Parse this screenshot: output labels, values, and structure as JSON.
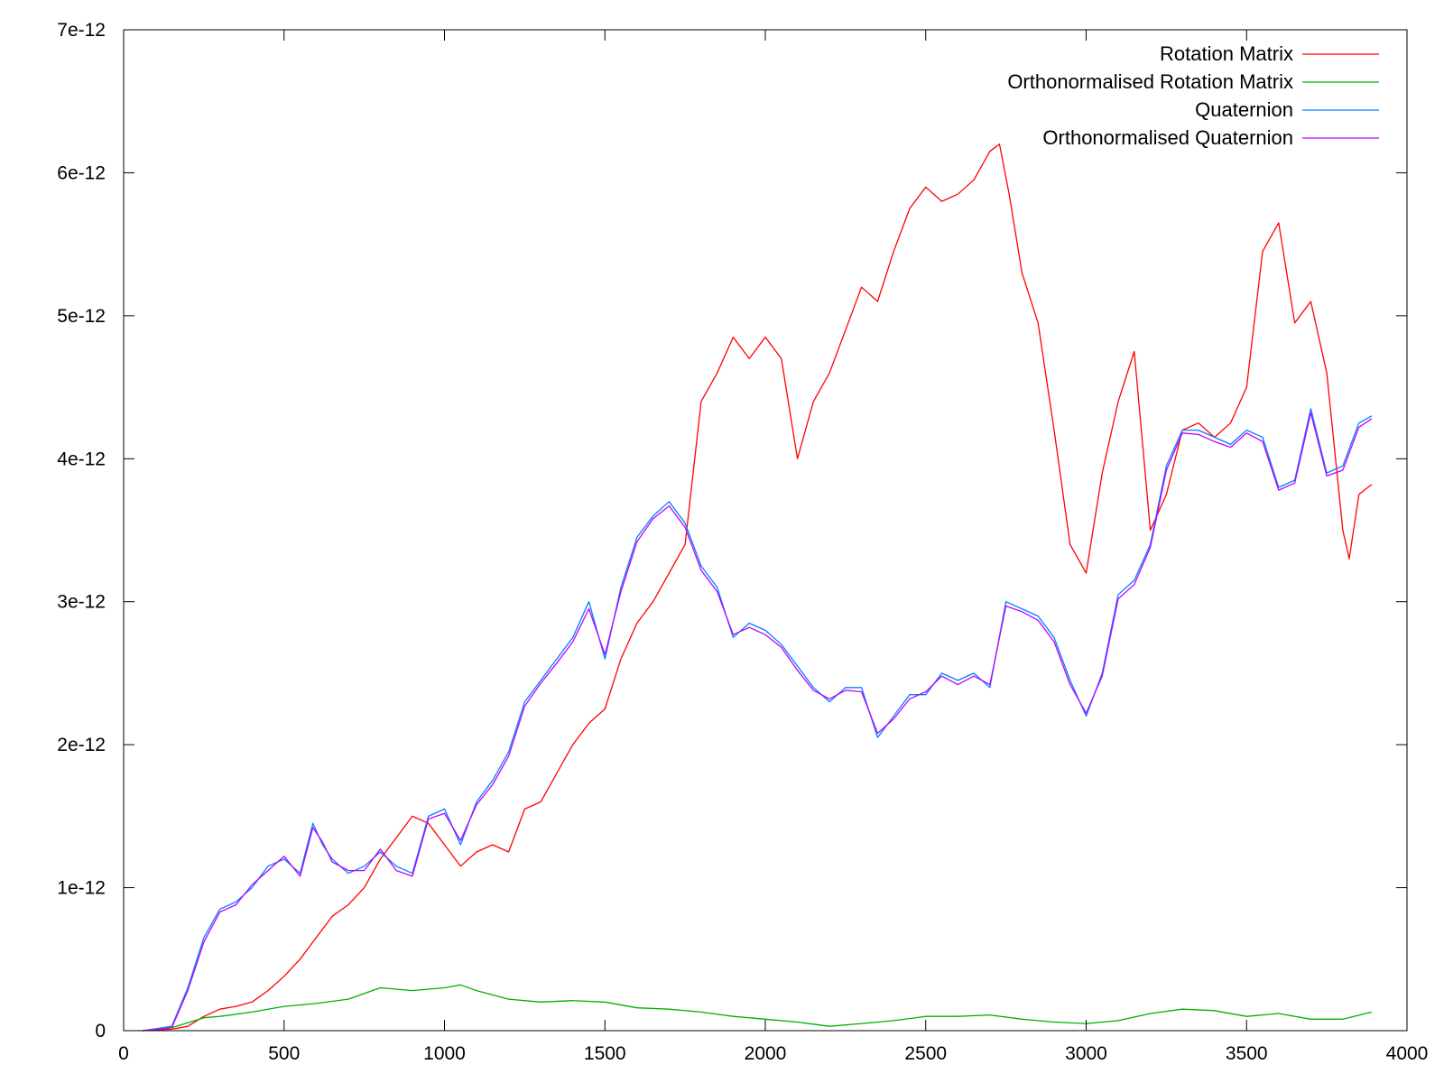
{
  "chart_data": {
    "type": "line",
    "title": "",
    "xlabel": "",
    "ylabel": "",
    "xlim": [
      0,
      4000
    ],
    "ylim": [
      0,
      7e-12
    ],
    "grid": false,
    "legend_position": "top-right",
    "x_ticks": [
      {
        "value": 0,
        "label": "0"
      },
      {
        "value": 500,
        "label": "500"
      },
      {
        "value": 1000,
        "label": "1000"
      },
      {
        "value": 1500,
        "label": "1500"
      },
      {
        "value": 2000,
        "label": "2000"
      },
      {
        "value": 2500,
        "label": "2500"
      },
      {
        "value": 3000,
        "label": "3000"
      },
      {
        "value": 3500,
        "label": "3500"
      },
      {
        "value": 4000,
        "label": "4000"
      }
    ],
    "y_ticks": [
      {
        "value": 0,
        "label": "0"
      },
      {
        "value": 1e-12,
        "label": "1e-12"
      },
      {
        "value": 2e-12,
        "label": "2e-12"
      },
      {
        "value": 3e-12,
        "label": "3e-12"
      },
      {
        "value": 4e-12,
        "label": "4e-12"
      },
      {
        "value": 5e-12,
        "label": "5e-12"
      },
      {
        "value": 6e-12,
        "label": "6e-12"
      },
      {
        "value": 7e-12,
        "label": "7e-12"
      }
    ],
    "series": [
      {
        "name": "Rotation Matrix",
        "color": "#ff0000",
        "x": [
          60,
          150,
          200,
          250,
          300,
          350,
          400,
          450,
          500,
          550,
          600,
          650,
          700,
          750,
          800,
          850,
          900,
          950,
          1000,
          1050,
          1100,
          1150,
          1200,
          1250,
          1300,
          1350,
          1400,
          1450,
          1500,
          1550,
          1600,
          1650,
          1700,
          1750,
          1800,
          1850,
          1900,
          1950,
          2000,
          2050,
          2100,
          2150,
          2200,
          2250,
          2300,
          2350,
          2400,
          2450,
          2500,
          2550,
          2600,
          2650,
          2700,
          2730,
          2760,
          2800,
          2850,
          2900,
          2950,
          3000,
          3050,
          3100,
          3150,
          3200,
          3250,
          3300,
          3350,
          3400,
          3450,
          3500,
          3550,
          3600,
          3650,
          3700,
          3750,
          3800,
          3820,
          3850,
          3890
        ],
        "values": [
          0,
          1e-14,
          3e-14,
          1e-13,
          1.5e-13,
          1.7e-13,
          2e-13,
          2.8e-13,
          3.8e-13,
          5e-13,
          6.5e-13,
          8e-13,
          8.8e-13,
          1e-12,
          1.2e-12,
          1.35e-12,
          1.5e-12,
          1.45e-12,
          1.3e-12,
          1.15e-12,
          1.25e-12,
          1.3e-12,
          1.25e-12,
          1.55e-12,
          1.6e-12,
          1.8e-12,
          2e-12,
          2.15e-12,
          2.25e-12,
          2.6e-12,
          2.85e-12,
          3e-12,
          3.2e-12,
          3.4e-12,
          4.4e-12,
          4.6e-12,
          4.85e-12,
          4.7e-12,
          4.85e-12,
          4.7e-12,
          4e-12,
          4.4e-12,
          4.6e-12,
          4.9e-12,
          5.2e-12,
          5.1e-12,
          5.45e-12,
          5.75e-12,
          5.9e-12,
          5.8e-12,
          5.85e-12,
          5.95e-12,
          6.15e-12,
          6.2e-12,
          5.85e-12,
          5.3e-12,
          4.95e-12,
          4.2e-12,
          3.4e-12,
          3.2e-12,
          3.9e-12,
          4.4e-12,
          4.75e-12,
          3.5e-12,
          3.75e-12,
          4.2e-12,
          4.25e-12,
          4.15e-12,
          4.25e-12,
          4.5e-12,
          5.45e-12,
          5.65e-12,
          4.95e-12,
          5.1e-12,
          4.6e-12,
          3.5e-12,
          3.3e-12,
          3.75e-12,
          3.82e-12
        ]
      },
      {
        "name": "Orthonormalised Rotation Matrix",
        "color": "#00b000",
        "x": [
          60,
          150,
          250,
          300,
          400,
          500,
          600,
          700,
          800,
          900,
          1000,
          1050,
          1100,
          1200,
          1300,
          1400,
          1500,
          1600,
          1700,
          1800,
          1900,
          2000,
          2100,
          2200,
          2300,
          2400,
          2500,
          2600,
          2700,
          2800,
          2900,
          3000,
          3100,
          3200,
          3300,
          3400,
          3500,
          3600,
          3700,
          3800,
          3890
        ],
        "values": [
          0,
          2e-14,
          9e-14,
          1e-13,
          1.3e-13,
          1.7e-13,
          1.9e-13,
          2.2e-13,
          3e-13,
          2.8e-13,
          3e-13,
          3.2e-13,
          2.8e-13,
          2.2e-13,
          2e-13,
          2.1e-13,
          2e-13,
          1.6e-13,
          1.5e-13,
          1.3e-13,
          1e-13,
          8e-14,
          6e-14,
          3e-14,
          5e-14,
          7e-14,
          1e-13,
          1e-13,
          1.1e-13,
          8e-14,
          6e-14,
          5e-14,
          7e-14,
          1.2e-13,
          1.5e-13,
          1.4e-13,
          1e-13,
          1.2e-13,
          8e-14,
          8e-14,
          1.3e-13
        ]
      },
      {
        "name": "Quaternion",
        "color": "#0080ff",
        "x": [
          60,
          150,
          200,
          250,
          300,
          350,
          400,
          450,
          500,
          550,
          590,
          620,
          650,
          700,
          750,
          800,
          850,
          900,
          950,
          1000,
          1050,
          1100,
          1150,
          1200,
          1250,
          1300,
          1350,
          1400,
          1450,
          1500,
          1550,
          1600,
          1650,
          1700,
          1750,
          1800,
          1850,
          1900,
          1950,
          2000,
          2050,
          2100,
          2150,
          2200,
          2250,
          2300,
          2350,
          2400,
          2450,
          2500,
          2550,
          2600,
          2650,
          2700,
          2750,
          2800,
          2850,
          2900,
          2950,
          3000,
          3050,
          3100,
          3150,
          3200,
          3250,
          3300,
          3350,
          3400,
          3450,
          3500,
          3550,
          3600,
          3650,
          3700,
          3750,
          3800,
          3850,
          3890
        ],
        "values": [
          0,
          3e-14,
          3e-13,
          6.5e-13,
          8.5e-13,
          9e-13,
          1e-12,
          1.15e-12,
          1.2e-12,
          1.1e-12,
          1.45e-12,
          1.3e-12,
          1.2e-12,
          1.1e-12,
          1.15e-12,
          1.25e-12,
          1.15e-12,
          1.1e-12,
          1.5e-12,
          1.55e-12,
          1.3e-12,
          1.6e-12,
          1.75e-12,
          1.95e-12,
          2.3e-12,
          2.45e-12,
          2.6e-12,
          2.75e-12,
          3e-12,
          2.6e-12,
          3.1e-12,
          3.45e-12,
          3.6e-12,
          3.7e-12,
          3.55e-12,
          3.25e-12,
          3.1e-12,
          2.75e-12,
          2.85e-12,
          2.8e-12,
          2.7e-12,
          2.55e-12,
          2.4e-12,
          2.3e-12,
          2.4e-12,
          2.4e-12,
          2.05e-12,
          2.2e-12,
          2.35e-12,
          2.35e-12,
          2.5e-12,
          2.45e-12,
          2.5e-12,
          2.4e-12,
          3e-12,
          2.95e-12,
          2.9e-12,
          2.75e-12,
          2.45e-12,
          2.2e-12,
          2.5e-12,
          3.05e-12,
          3.15e-12,
          3.4e-12,
          3.95e-12,
          4.2e-12,
          4.2e-12,
          4.15e-12,
          4.1e-12,
          4.2e-12,
          4.15e-12,
          3.8e-12,
          3.85e-12,
          4.35e-12,
          3.9e-12,
          3.95e-12,
          4.25e-12,
          4.3e-12
        ]
      },
      {
        "name": "Orthonormalised Quaternion",
        "color": "#c000ff",
        "x": [
          60,
          150,
          200,
          250,
          300,
          350,
          400,
          450,
          500,
          550,
          590,
          620,
          650,
          700,
          750,
          800,
          850,
          900,
          950,
          1000,
          1050,
          1100,
          1150,
          1200,
          1250,
          1300,
          1350,
          1400,
          1450,
          1500,
          1550,
          1600,
          1650,
          1700,
          1750,
          1800,
          1850,
          1900,
          1950,
          2000,
          2050,
          2100,
          2150,
          2200,
          2250,
          2300,
          2350,
          2400,
          2450,
          2500,
          2550,
          2600,
          2650,
          2700,
          2750,
          2800,
          2850,
          2900,
          2950,
          3000,
          3050,
          3100,
          3150,
          3200,
          3250,
          3300,
          3350,
          3400,
          3450,
          3500,
          3550,
          3600,
          3650,
          3700,
          3750,
          3800,
          3850,
          3890
        ],
        "values": [
          0,
          2e-14,
          2.8e-13,
          6.2e-13,
          8.3e-13,
          8.8e-13,
          1.02e-12,
          1.12e-12,
          1.22e-12,
          1.08e-12,
          1.42e-12,
          1.32e-12,
          1.18e-12,
          1.12e-12,
          1.12e-12,
          1.27e-12,
          1.12e-12,
          1.08e-12,
          1.48e-12,
          1.52e-12,
          1.33e-12,
          1.58e-12,
          1.72e-12,
          1.92e-12,
          2.27e-12,
          2.43e-12,
          2.57e-12,
          2.72e-12,
          2.95e-12,
          2.63e-12,
          3.07e-12,
          3.42e-12,
          3.58e-12,
          3.67e-12,
          3.52e-12,
          3.22e-12,
          3.07e-12,
          2.77e-12,
          2.82e-12,
          2.77e-12,
          2.68e-12,
          2.52e-12,
          2.38e-12,
          2.32e-12,
          2.38e-12,
          2.37e-12,
          2.08e-12,
          2.18e-12,
          2.32e-12,
          2.37e-12,
          2.48e-12,
          2.42e-12,
          2.48e-12,
          2.42e-12,
          2.97e-12,
          2.93e-12,
          2.87e-12,
          2.72e-12,
          2.42e-12,
          2.22e-12,
          2.48e-12,
          3.02e-12,
          3.12e-12,
          3.38e-12,
          3.92e-12,
          4.18e-12,
          4.17e-12,
          4.12e-12,
          4.08e-12,
          4.18e-12,
          4.12e-12,
          3.78e-12,
          3.83e-12,
          4.32e-12,
          3.88e-12,
          3.92e-12,
          4.22e-12,
          4.28e-12
        ]
      }
    ]
  }
}
